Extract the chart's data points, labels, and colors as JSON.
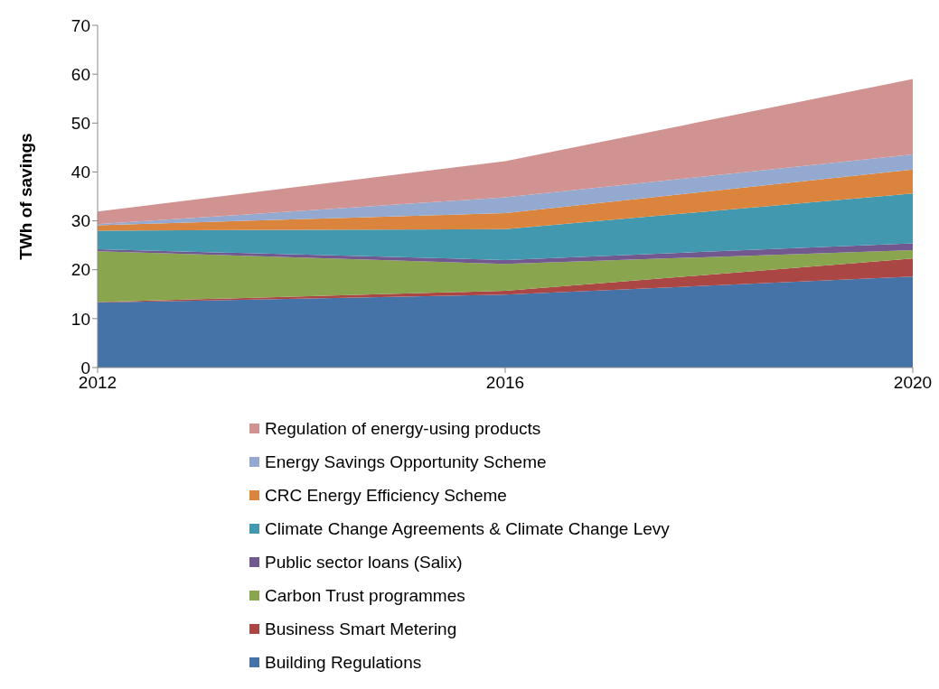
{
  "chart_data": {
    "type": "area",
    "stacked": true,
    "ylabel": "TWh of savings",
    "x": [
      2012,
      2016,
      2020
    ],
    "xlim": [
      2012,
      2020
    ],
    "xticks": [
      2012,
      2016,
      2020
    ],
    "ylim": [
      0,
      70
    ],
    "yticks": [
      0,
      10,
      20,
      30,
      40,
      50,
      60,
      70
    ],
    "legend": "bottom",
    "series": [
      {
        "name": "Building Regulations",
        "color": "#4572a7",
        "values": [
          13.3,
          14.9,
          18.6
        ]
      },
      {
        "name": "Business Smart Metering",
        "color": "#aa4643",
        "values": [
          0.1,
          0.8,
          3.7
        ]
      },
      {
        "name": "Carbon Trust programmes",
        "color": "#89a54e",
        "values": [
          10.4,
          5.5,
          1.7
        ]
      },
      {
        "name": "Public sector loans (Salix)",
        "color": "#71588f",
        "values": [
          0.4,
          0.8,
          1.4
        ]
      },
      {
        "name": "Climate Change Agreements & Climate Change Levy",
        "color": "#4198af",
        "values": [
          3.8,
          6.3,
          10.2
        ]
      },
      {
        "name": "CRC Energy Efficiency Scheme",
        "color": "#db843d",
        "values": [
          1.1,
          3.3,
          4.9
        ]
      },
      {
        "name": "Energy Savings Opportunity Scheme",
        "color": "#93a9cf",
        "values": [
          0.2,
          3.2,
          3.1
        ]
      },
      {
        "name": "Regulation of energy-using products",
        "color": "#d19392",
        "values": [
          2.6,
          7.4,
          15.4
        ]
      }
    ]
  }
}
